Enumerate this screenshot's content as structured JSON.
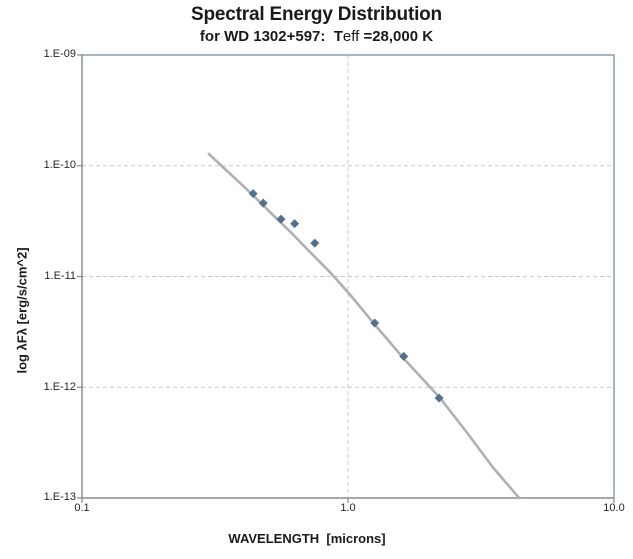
{
  "header": {
    "title": "Spectral Energy Distribution",
    "subtitle_pre": "for WD 1302+597:  T",
    "subtitle_eff": "eff",
    "subtitle_post": " =28,000 K"
  },
  "chart_data": {
    "type": "scatter",
    "title": "Spectral Energy Distribution",
    "subtitle": "for WD 1302+597:  Teff =28,000 K",
    "xlabel": "WAVELENGTH  [microns]",
    "ylabel": "log λFλ [erg/s/cm^2]",
    "xscale": "log",
    "yscale": "log",
    "xlim": [
      0.1,
      10.0
    ],
    "ylim": [
      1e-13,
      1e-09
    ],
    "grid": "dashed, y-decades and x=1.0",
    "legend": "none",
    "xticks": [
      {
        "value": 0.1,
        "label": "0.1",
        "grid": false
      },
      {
        "value": 1.0,
        "label": "1.0",
        "grid": true
      },
      {
        "value": 10.0,
        "label": "10.0",
        "grid": false
      }
    ],
    "yticks": [
      {
        "value": 1e-09,
        "label": "1.E-09",
        "grid": false
      },
      {
        "value": 1e-10,
        "label": "1.E-10",
        "grid": true
      },
      {
        "value": 1e-11,
        "label": "1.E-11",
        "grid": true
      },
      {
        "value": 1e-12,
        "label": "1.E-12",
        "grid": true
      },
      {
        "value": 1e-13,
        "label": "1.E-13",
        "grid": false
      }
    ],
    "series": [
      {
        "name": "model-spectrum",
        "type": "line",
        "color": "#aeb0b3",
        "width": 2.6,
        "x": [
          0.3,
          0.345,
          0.395,
          0.44,
          0.51,
          0.61,
          0.72,
          0.86,
          1.02,
          1.27,
          1.61,
          2.22,
          2.8,
          3.5,
          4.4
        ],
        "y": [
          1.28e-10,
          9.3e-11,
          6.9e-11,
          5.4e-11,
          3.8e-11,
          2.5e-11,
          1.66e-11,
          1.08e-11,
          6.8e-12,
          3.6e-12,
          1.85e-12,
          8e-13,
          3.9e-13,
          1.9e-13,
          1e-13
        ]
      },
      {
        "name": "photometry-points",
        "type": "scatter",
        "marker": "diamond",
        "color": "#54708f",
        "size": 4.5,
        "x": [
          0.44,
          0.48,
          0.56,
          0.63,
          0.75,
          1.26,
          1.62,
          2.2
        ],
        "y": [
          5.6e-11,
          4.6e-11,
          3.3e-11,
          3e-11,
          2e-11,
          3.8e-12,
          1.9e-12,
          8e-13
        ]
      }
    ],
    "colors": {
      "plot_border": "#6e93ad",
      "axis": "#898989",
      "gridline": "#c9c9c9",
      "text": "#1a1a1a"
    }
  }
}
